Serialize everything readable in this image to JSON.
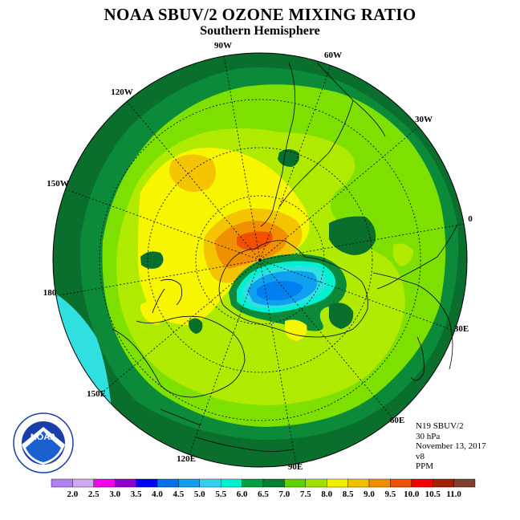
{
  "title": "NOAA SBUV/2 OZONE MIXING RATIO",
  "subtitle": "Southern Hemisphere",
  "longitude_labels": [
    "90W",
    "60W",
    "30W",
    "0",
    "30E",
    "60E",
    "90E",
    "120E",
    "150E",
    "180",
    "150W",
    "120W"
  ],
  "info": {
    "satellite": "N19 SBUV/2",
    "level": "30 hPa",
    "date": "November 13, 2017",
    "version": "v8",
    "units": "PPM"
  },
  "logo": {
    "text": "NOAA",
    "ring_text": "NATIONAL OCEANIC AND ATMOSPHERIC ADMINISTRATION · U.S. DEPARTMENT OF COMMERCE"
  },
  "colorbar": {
    "labels": [
      "2.0",
      "2.5",
      "3.0",
      "3.5",
      "4.0",
      "4.5",
      "5.0",
      "5.5",
      "6.0",
      "6.5",
      "7.0",
      "7.5",
      "8.0",
      "8.5",
      "9.0",
      "9.5",
      "10.0",
      "10.5",
      "11.0"
    ],
    "colors": [
      "#b080f0",
      "#d0a8f0",
      "#f000f0",
      "#9000d0",
      "#0000f0",
      "#0070f0",
      "#10a0f0",
      "#30d0f0",
      "#00f0d0",
      "#00a040",
      "#008030",
      "#60d000",
      "#a0e000",
      "#f0f000",
      "#f0c000",
      "#f09000",
      "#f05000",
      "#f00000",
      "#a02000",
      "#804030"
    ]
  },
  "map_colors": {
    "c65": "#0b8a3a",
    "c70": "#0a6e2c",
    "c75": "#7ee000",
    "c80": "#b0ea00",
    "c85": "#f8f500",
    "c90": "#f5c400",
    "c95": "#f09000",
    "c10": "#f05000",
    "c55": "#30e0e0",
    "c50": "#10a0f0",
    "c45": "#0080f0",
    "c60": "#00f0d0"
  }
}
